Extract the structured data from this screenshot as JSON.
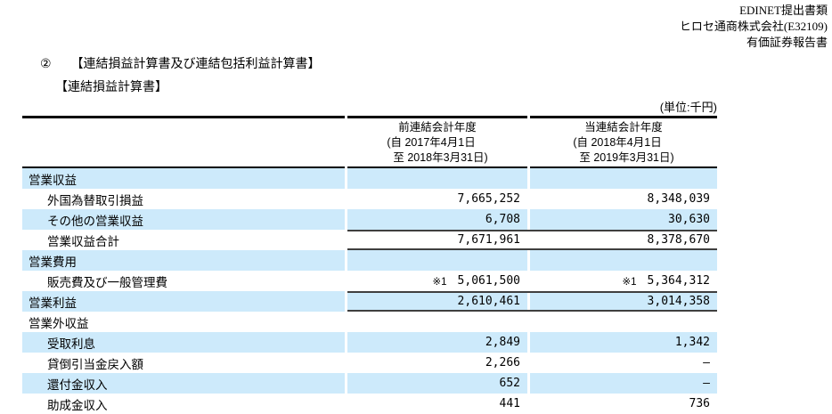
{
  "page": {
    "doc_header": {
      "line1": "EDINET提出書類",
      "line2": "ヒロセ通商株式会社(E32109)",
      "line3": "有価証券報告書"
    },
    "heading": {
      "marker": "②",
      "title": "【連結損益計算書及び連結包括利益計算書】"
    },
    "subheading": "【連結損益計算書】",
    "unit_label": "(単位:千円)"
  },
  "table": {
    "columns": [
      {
        "title": "前連結会計年度",
        "from": "(自 2017年4月1日",
        "to": "至 2018年3月31日)"
      },
      {
        "title": "当連結会計年度",
        "from": "(自 2018年4月1日",
        "to": "至 2019年3月31日)"
      }
    ],
    "rows": [
      {
        "label": "営業収益",
        "indent": 0,
        "blue": true,
        "totaled": false,
        "prev": "",
        "curr": ""
      },
      {
        "label": "外国為替取引損益",
        "indent": 1,
        "blue": false,
        "totaled": false,
        "prev": "7,665,252",
        "curr": "8,348,039"
      },
      {
        "label": "その他の営業収益",
        "indent": 1,
        "blue": true,
        "totaled": false,
        "prev": "6,708",
        "curr": "30,630"
      },
      {
        "label": "営業収益合計",
        "indent": 1,
        "blue": false,
        "totaled": true,
        "prev": "7,671,961",
        "curr": "8,378,670"
      },
      {
        "label": "営業費用",
        "indent": 0,
        "blue": true,
        "totaled": false,
        "prev": "",
        "curr": ""
      },
      {
        "label": "販売費及び一般管理費",
        "indent": 1,
        "blue": false,
        "totaled": false,
        "prev_note": "※1",
        "prev": "5,061,500",
        "curr_note": "※1",
        "curr": "5,364,312"
      },
      {
        "label": "営業利益",
        "indent": 0,
        "blue": true,
        "totaled": true,
        "prev": "2,610,461",
        "curr": "3,014,358"
      },
      {
        "label": "営業外収益",
        "indent": 0,
        "blue": false,
        "totaled": false,
        "prev": "",
        "curr": ""
      },
      {
        "label": "受取利息",
        "indent": 1,
        "blue": true,
        "totaled": false,
        "prev": "2,849",
        "curr": "1,342"
      },
      {
        "label": "貸倒引当金戻入額",
        "indent": 1,
        "blue": false,
        "totaled": false,
        "prev": "2,266",
        "curr": "―"
      },
      {
        "label": "還付金収入",
        "indent": 1,
        "blue": true,
        "totaled": false,
        "prev": "652",
        "curr": "―"
      },
      {
        "label": "助成金収入",
        "indent": 1,
        "blue": false,
        "totaled": false,
        "prev": "441",
        "curr": "736"
      }
    ],
    "colors": {
      "row_highlight": "#cdeafb",
      "total_border": "#3f3f3f",
      "table_border": "#000000"
    }
  }
}
